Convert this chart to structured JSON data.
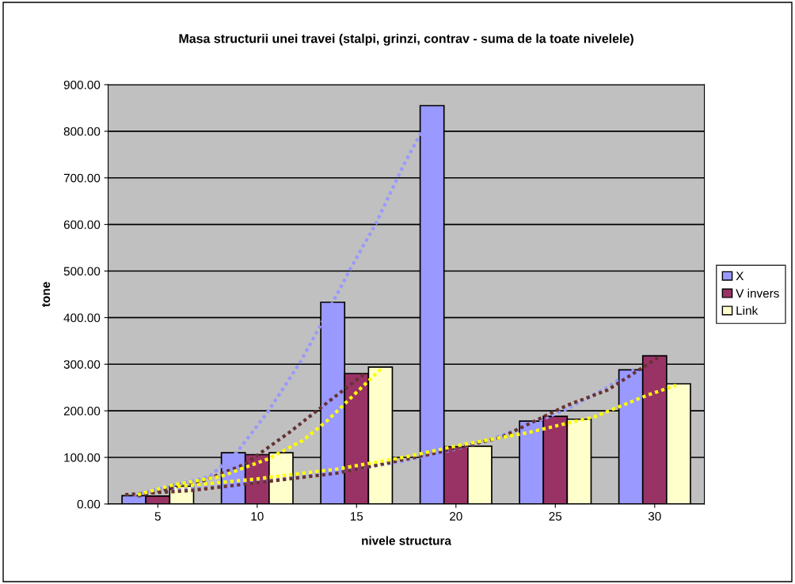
{
  "chart_data": {
    "type": "bar",
    "title": "Masa structurii unei travei (stalpi, grinzi, contrav - suma de la toate nivelele)",
    "xlabel": "nivele structura",
    "ylabel": "tone",
    "x": [
      5,
      10,
      15,
      20,
      25,
      30
    ],
    "xlim": [
      2.5,
      32.5
    ],
    "xticks": [
      5,
      10,
      15,
      20,
      25,
      30
    ],
    "ylim": [
      0,
      900
    ],
    "yticks": [
      {
        "value": 0,
        "label": "0.00"
      },
      {
        "value": 100,
        "label": "100.00"
      },
      {
        "value": 200,
        "label": "200.00"
      },
      {
        "value": 300,
        "label": "300.00"
      },
      {
        "value": 400,
        "label": "400.00"
      },
      {
        "value": 500,
        "label": "500.00"
      },
      {
        "value": 600,
        "label": "600.00"
      },
      {
        "value": 700,
        "label": "700.00"
      },
      {
        "value": 800,
        "label": "800.00"
      },
      {
        "value": 900,
        "label": "900.00"
      }
    ],
    "grid": "y",
    "legend": "right",
    "series": [
      {
        "name": "X",
        "color": "#9999ff",
        "values": [
          18,
          110,
          433,
          855,
          178,
          288
        ]
      },
      {
        "name": "V invers",
        "color": "#993366",
        "values": [
          17,
          106,
          280,
          123,
          188,
          318
        ]
      },
      {
        "name": "Link",
        "color": "#ffffcc",
        "values": [
          38,
          110,
          294,
          124,
          182,
          258
        ]
      },
      {
        "type": "line",
        "color": "#9999ff",
        "line_style": "dotted",
        "x": [
          3.76,
          7.6,
          8.96,
          10.56,
          12.16,
          13.36,
          14.68,
          15.96,
          17.4,
          18.36
        ],
        "values": [
          19,
          59,
          110,
          199,
          304,
          397,
          504,
          601,
          730,
          806
        ]
      },
      {
        "type": "line",
        "color": "#9999ff",
        "line_style": "dotted",
        "x": [
          4.68,
          8.4,
          14,
          17.36,
          19.6,
          21.6,
          23.6,
          25.6,
          27.6,
          28.96
        ],
        "values": [
          29,
          41,
          68,
          92,
          114,
          136,
          168,
          204,
          250,
          289
        ]
      },
      {
        "type": "line",
        "color": "#663333",
        "line_style": "dotted",
        "x": [
          4,
          7.36,
          9.36,
          11.6,
          13.48,
          15.36
        ],
        "values": [
          17,
          51,
          85,
          153,
          216,
          278
        ]
      },
      {
        "type": "line",
        "color": "#663333",
        "line_style": "dotted",
        "x": [
          3.36,
          6.68,
          14,
          18.96,
          22.28,
          25.6,
          27.6,
          30.16
        ],
        "values": [
          20,
          29,
          66,
          109,
          143,
          212,
          244,
          314
        ]
      },
      {
        "type": "line",
        "color": "#ffff00",
        "line_style": "dotted",
        "x": [
          4,
          5.76,
          8.16,
          10.56,
          12.28,
          13.48,
          14.96,
          16.28
        ],
        "values": [
          20,
          41,
          59,
          97,
          136,
          177,
          238,
          292
        ]
      },
      {
        "type": "line",
        "color": "#ffff00",
        "line_style": "dotted",
        "x": [
          6,
          10,
          14,
          17.36,
          20.28,
          23.6,
          26.96,
          29.6,
          31.08
        ],
        "values": [
          37,
          54,
          75,
          100,
          127,
          153,
          187,
          233,
          255
        ]
      }
    ]
  }
}
